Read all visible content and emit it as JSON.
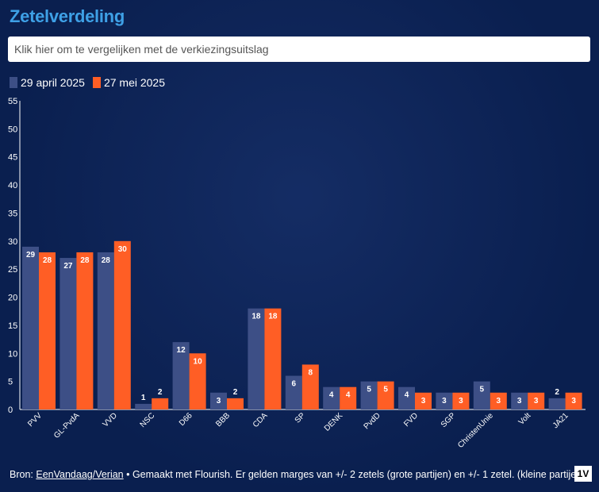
{
  "title": "Zetelverdeling",
  "search": {
    "placeholder": "Klik hier om te vergelijken met de verkiezingsuitslag"
  },
  "colors": {
    "series1": "#3d4f86",
    "series2": "#ff5e25",
    "title": "#3ea0e6"
  },
  "chart_data": {
    "type": "bar",
    "categories": [
      "PVV",
      "GL-PvdA",
      "VVD",
      "NSC",
      "D66",
      "BBB",
      "CDA",
      "SP",
      "DENK",
      "PvdD",
      "FVD",
      "SGP",
      "ChristenUnie",
      "Volt",
      "JA21"
    ],
    "series": [
      {
        "name": "29 april 2025",
        "values": [
          29,
          27,
          28,
          1,
          12,
          3,
          18,
          6,
          4,
          5,
          4,
          3,
          5,
          3,
          2
        ]
      },
      {
        "name": "27 mei 2025",
        "values": [
          28,
          28,
          30,
          2,
          10,
          2,
          18,
          8,
          4,
          5,
          3,
          3,
          3,
          3,
          3
        ]
      }
    ],
    "yticks": [
      0,
      5,
      10,
      15,
      20,
      25,
      30,
      35,
      40,
      45,
      50,
      55
    ],
    "ylim": [
      0,
      55
    ],
    "legend_position": "top-left"
  },
  "footer": {
    "prefix": "Bron: ",
    "source": "EenVandaag/Verian",
    "text": " • Gemaakt met Flourish. Er gelden marges van +/- 2 zetels (grote partijen) en +/- 1 zetel. (kleine partijen)"
  },
  "logo": "1V"
}
